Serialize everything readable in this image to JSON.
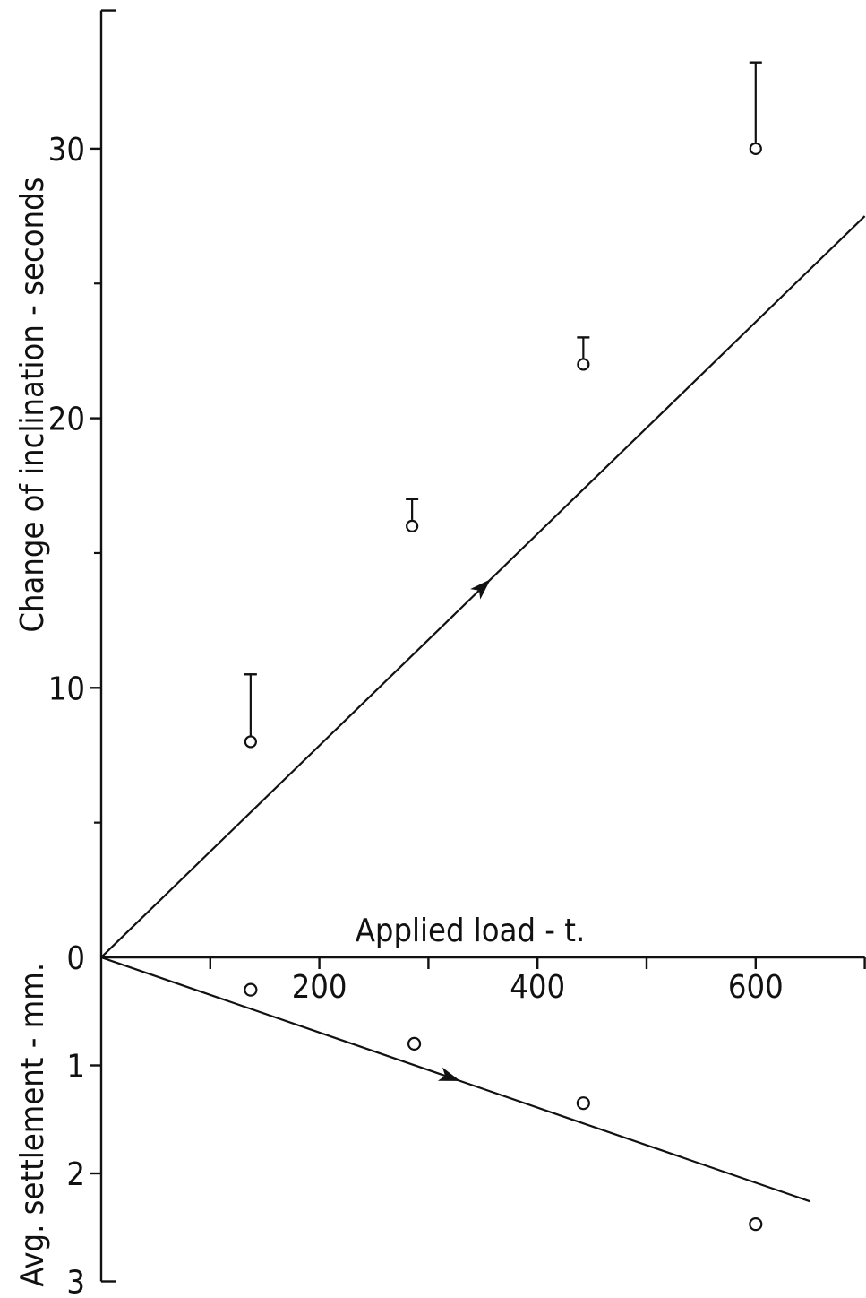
{
  "chart_data": [
    {
      "type": "scatter",
      "panel": "upper",
      "xlabel": "Applied load - t.",
      "ylabel": "Change of inclination - seconds",
      "xlim": [
        0,
        700
      ],
      "ylim": [
        0,
        35
      ],
      "x_ticks": [
        200,
        400,
        600
      ],
      "x_tick_labels": [
        "200",
        "400",
        "600"
      ],
      "x_minor_ticks": [
        100,
        300,
        500,
        700
      ],
      "y_ticks": [
        0,
        10,
        20,
        30
      ],
      "y_tick_labels": [
        "0",
        "10",
        "20",
        "30"
      ],
      "y_minor_ticks": [
        5,
        15,
        25
      ],
      "points": [
        {
          "x": 137,
          "y": 8.0,
          "upper": 10.5
        },
        {
          "x": 285,
          "y": 16.0,
          "upper": 17.0
        },
        {
          "x": 442,
          "y": 22.0,
          "upper": 23.0
        },
        {
          "x": 600,
          "y": 30.0,
          "upper": 33.2
        }
      ],
      "line": {
        "x": [
          0,
          700
        ],
        "y": [
          0,
          27.5
        ],
        "arrow_at_x": 350
      },
      "grid": false
    },
    {
      "type": "scatter",
      "panel": "lower",
      "xlabel": "Applied load - t.",
      "ylabel": "Avg. settlement - mm.",
      "xlim": [
        0,
        700
      ],
      "ylim": [
        0,
        3
      ],
      "y_inverted": true,
      "y_ticks": [
        1,
        2,
        3
      ],
      "y_tick_labels": [
        "1",
        "2",
        "3"
      ],
      "points": [
        {
          "x": 137,
          "y": 0.3
        },
        {
          "x": 287,
          "y": 0.8
        },
        {
          "x": 442,
          "y": 1.35
        },
        {
          "x": 600,
          "y": 2.47
        }
      ],
      "line": {
        "x": [
          0,
          650
        ],
        "y": [
          0,
          2.26
        ],
        "arrow_at_x": 320
      },
      "grid": false
    }
  ]
}
